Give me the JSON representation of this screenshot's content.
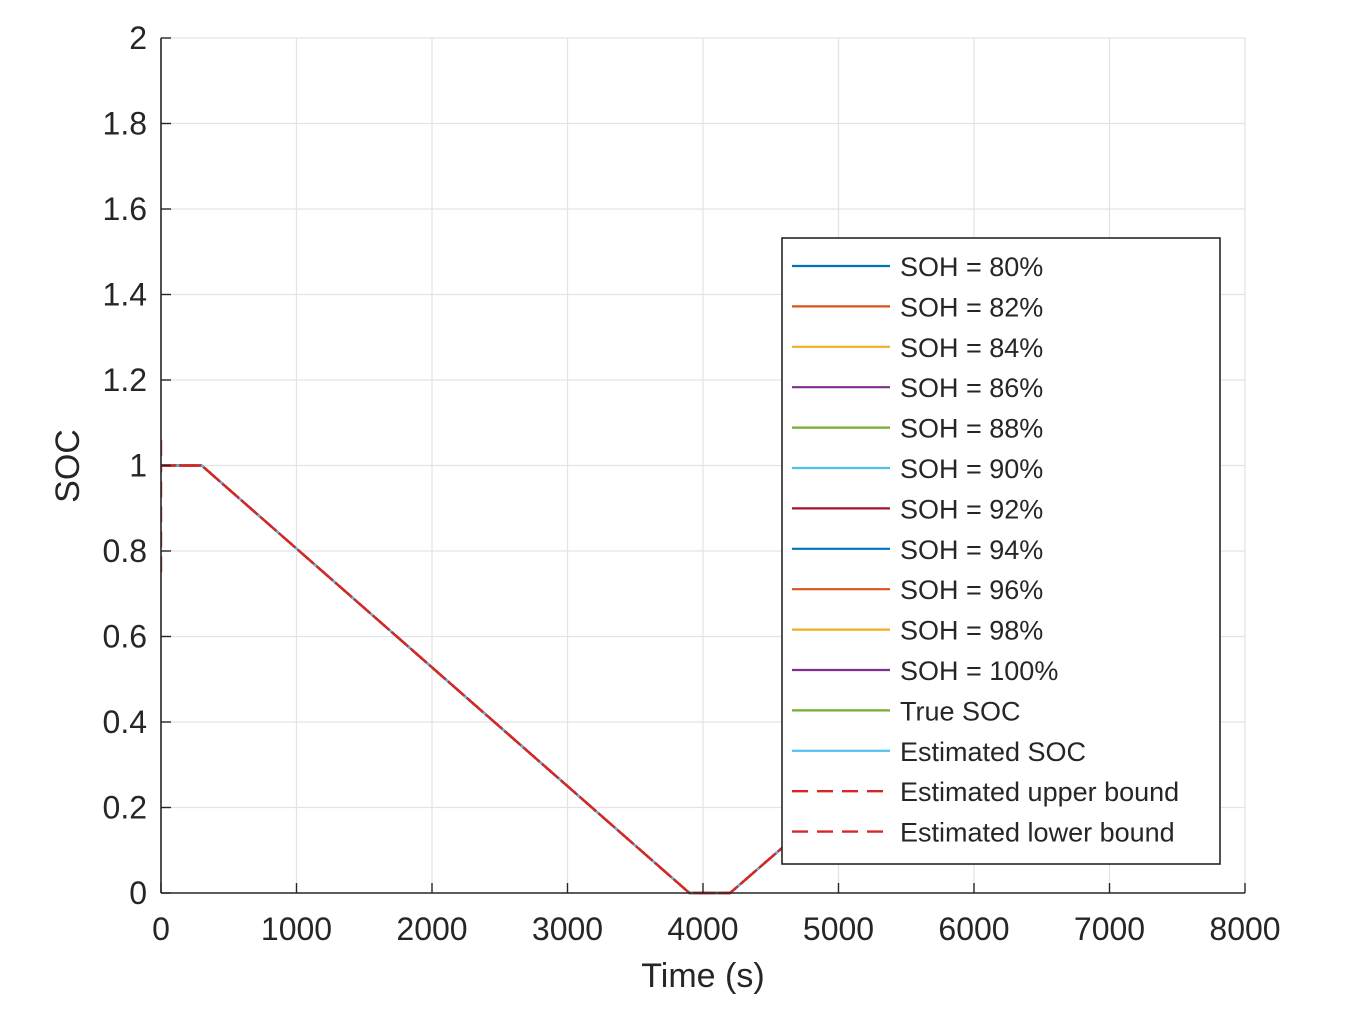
{
  "chart_data": {
    "type": "line",
    "title": "",
    "xlabel": "Time (s)",
    "ylabel": "SOC",
    "xlim": [
      0,
      8000
    ],
    "ylim": [
      0,
      2
    ],
    "xticks": [
      0,
      1000,
      2000,
      3000,
      4000,
      5000,
      6000,
      7000,
      8000
    ],
    "yticks": [
      0,
      0.2,
      0.4,
      0.6,
      0.8,
      1,
      1.2,
      1.4,
      1.6,
      1.8,
      2
    ],
    "xtick_labels": [
      "0",
      "1000",
      "2000",
      "3000",
      "4000",
      "5000",
      "6000",
      "7000",
      "8000"
    ],
    "ytick_labels": [
      "0",
      "0.2",
      "0.4",
      "0.6",
      "0.8",
      "1",
      "1.2",
      "1.4",
      "1.6",
      "1.8",
      "2"
    ],
    "grid": true,
    "legend_position": "lower-right",
    "series": [
      {
        "name": "SOH = 80%",
        "color": "#0072BD",
        "style": "solid",
        "x": [
          0,
          300,
          3900,
          4200,
          4600
        ],
        "y": [
          1,
          1,
          0,
          0,
          0.11
        ]
      },
      {
        "name": "SOH = 82%",
        "color": "#D95319",
        "style": "solid",
        "x": [
          0,
          300,
          3900,
          4200,
          4600
        ],
        "y": [
          1,
          1,
          0,
          0,
          0.11
        ]
      },
      {
        "name": "SOH = 84%",
        "color": "#EDB120",
        "style": "solid",
        "x": [
          0,
          300,
          3900,
          4200,
          4600
        ],
        "y": [
          1,
          1,
          0,
          0,
          0.11
        ]
      },
      {
        "name": "SOH = 86%",
        "color": "#7E2F8E",
        "style": "solid",
        "x": [
          0,
          300,
          3900,
          4200,
          4600
        ],
        "y": [
          1,
          1,
          0,
          0,
          0.11
        ]
      },
      {
        "name": "SOH = 88%",
        "color": "#77AC30",
        "style": "solid",
        "x": [
          0,
          300,
          3900,
          4200,
          4600
        ],
        "y": [
          1,
          1,
          0,
          0,
          0.11
        ]
      },
      {
        "name": "SOH = 90%",
        "color": "#4DBEEE",
        "style": "solid",
        "x": [
          0,
          300,
          3900,
          4200,
          4600
        ],
        "y": [
          1,
          1,
          0,
          0,
          0.11
        ]
      },
      {
        "name": "SOH = 92%",
        "color": "#A2142F",
        "style": "solid",
        "x": [
          0,
          300,
          3900,
          4200,
          4600
        ],
        "y": [
          1,
          1,
          0,
          0,
          0.11
        ]
      },
      {
        "name": "SOH = 94%",
        "color": "#0072BD",
        "style": "solid",
        "x": [
          0,
          300,
          3900,
          4200,
          4600
        ],
        "y": [
          1,
          1,
          0,
          0,
          0.11
        ]
      },
      {
        "name": "SOH = 96%",
        "color": "#D95319",
        "style": "solid",
        "x": [
          0,
          300,
          3900,
          4200,
          4600
        ],
        "y": [
          1,
          1,
          0,
          0,
          0.11
        ]
      },
      {
        "name": "SOH = 98%",
        "color": "#EDB120",
        "style": "solid",
        "x": [
          0,
          300,
          3900,
          4200,
          4600
        ],
        "y": [
          1,
          1,
          0,
          0,
          0.11
        ]
      },
      {
        "name": "SOH = 100%",
        "color": "#7E2F8E",
        "style": "solid",
        "x": [
          0,
          300,
          3900,
          4200,
          4600
        ],
        "y": [
          1,
          1,
          0,
          0,
          0.11
        ]
      },
      {
        "name": "True SOC",
        "color": "#77AC30",
        "style": "solid",
        "x": [
          0,
          300,
          3900,
          4200,
          4600
        ],
        "y": [
          1,
          1,
          0,
          0,
          0.11
        ]
      },
      {
        "name": "Estimated SOC",
        "color": "#4DBEEE",
        "style": "solid",
        "x": [
          0,
          300,
          3900,
          4200,
          4600
        ],
        "y": [
          1,
          1,
          0,
          0,
          0.11
        ]
      },
      {
        "name": "Estimated upper bound",
        "color": "#D62728",
        "style": "dashed",
        "x": [
          0,
          0,
          10,
          300,
          3900,
          4200,
          4600
        ],
        "y": [
          1.06,
          1.0,
          1,
          1,
          0,
          0,
          0.11
        ]
      },
      {
        "name": "Estimated lower bound",
        "color": "#D62728",
        "style": "dashed",
        "x": [
          0,
          0,
          10,
          300,
          3900,
          4200,
          4600
        ],
        "y": [
          0.75,
          1.0,
          1,
          1,
          0,
          0,
          0.11
        ]
      }
    ]
  }
}
